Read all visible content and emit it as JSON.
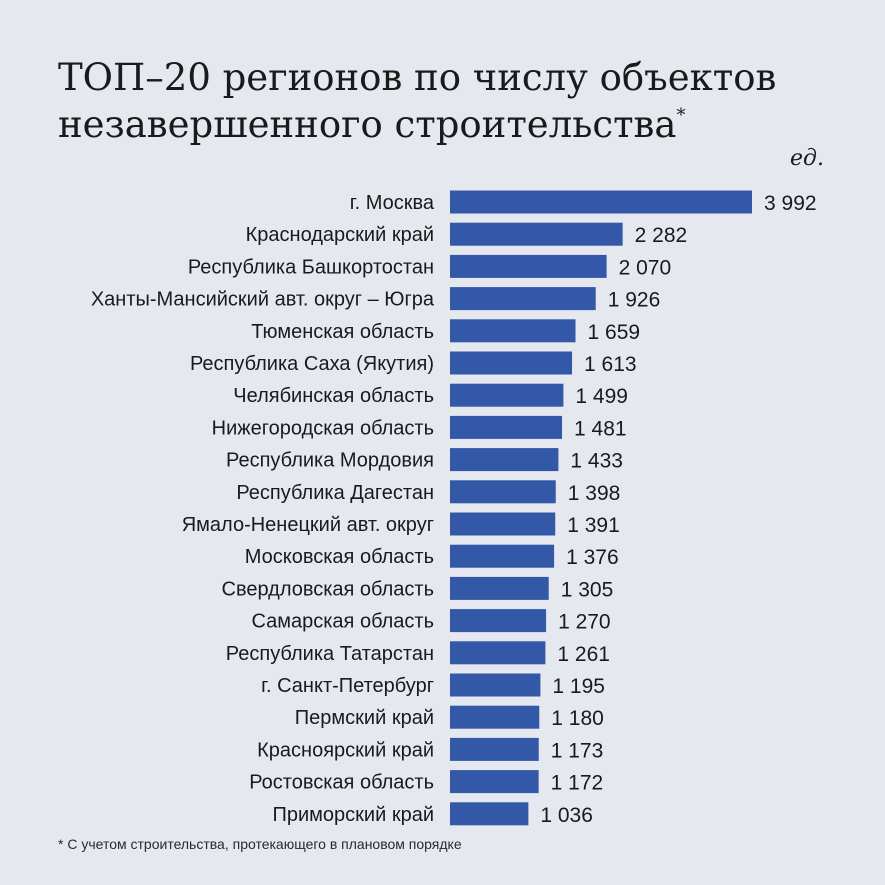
{
  "chart_data": {
    "type": "bar",
    "orientation": "horizontal",
    "title": {
      "line1": "ТОП–20 регионов по числу объектов",
      "line2": "незавершенного строительства",
      "mark": "*"
    },
    "unit": "ед.",
    "categories": [
      "г. Москва",
      "Краснодарский край",
      "Республика Башкортостан",
      "Ханты-Мансийский авт. округ – Югра",
      "Тюменская область",
      "Республика Саха (Якутия)",
      "Челябинская область",
      "Нижегородская область",
      "Республика Мордовия",
      "Республика Дагестан",
      "Ямало-Ненецкий авт. округ",
      "Московская область",
      "Свердловская область",
      "Самарская область",
      "Республика Татарстан",
      "г. Санкт-Петербург",
      "Пермский край",
      "Красноярский край",
      "Ростовская область",
      "Приморский край"
    ],
    "values": [
      3992,
      2282,
      2070,
      1926,
      1659,
      1613,
      1499,
      1481,
      1433,
      1398,
      1391,
      1376,
      1305,
      1270,
      1261,
      1195,
      1180,
      1173,
      1172,
      1036
    ],
    "value_labels": [
      "3 992",
      "2 282",
      "2 070",
      "1 926",
      "1 659",
      "1 613",
      "1 499",
      "1 481",
      "1 433",
      "1 398",
      "1 391",
      "1 376",
      "1 305",
      "1 270",
      "1 261",
      "1 195",
      "1 180",
      "1 173",
      "1 172",
      "1 036"
    ],
    "xlim": [
      0,
      3992
    ],
    "grid": false,
    "color": "#3358a7",
    "footnote": "* С учетом строительства, протекающего в плановом порядке"
  }
}
